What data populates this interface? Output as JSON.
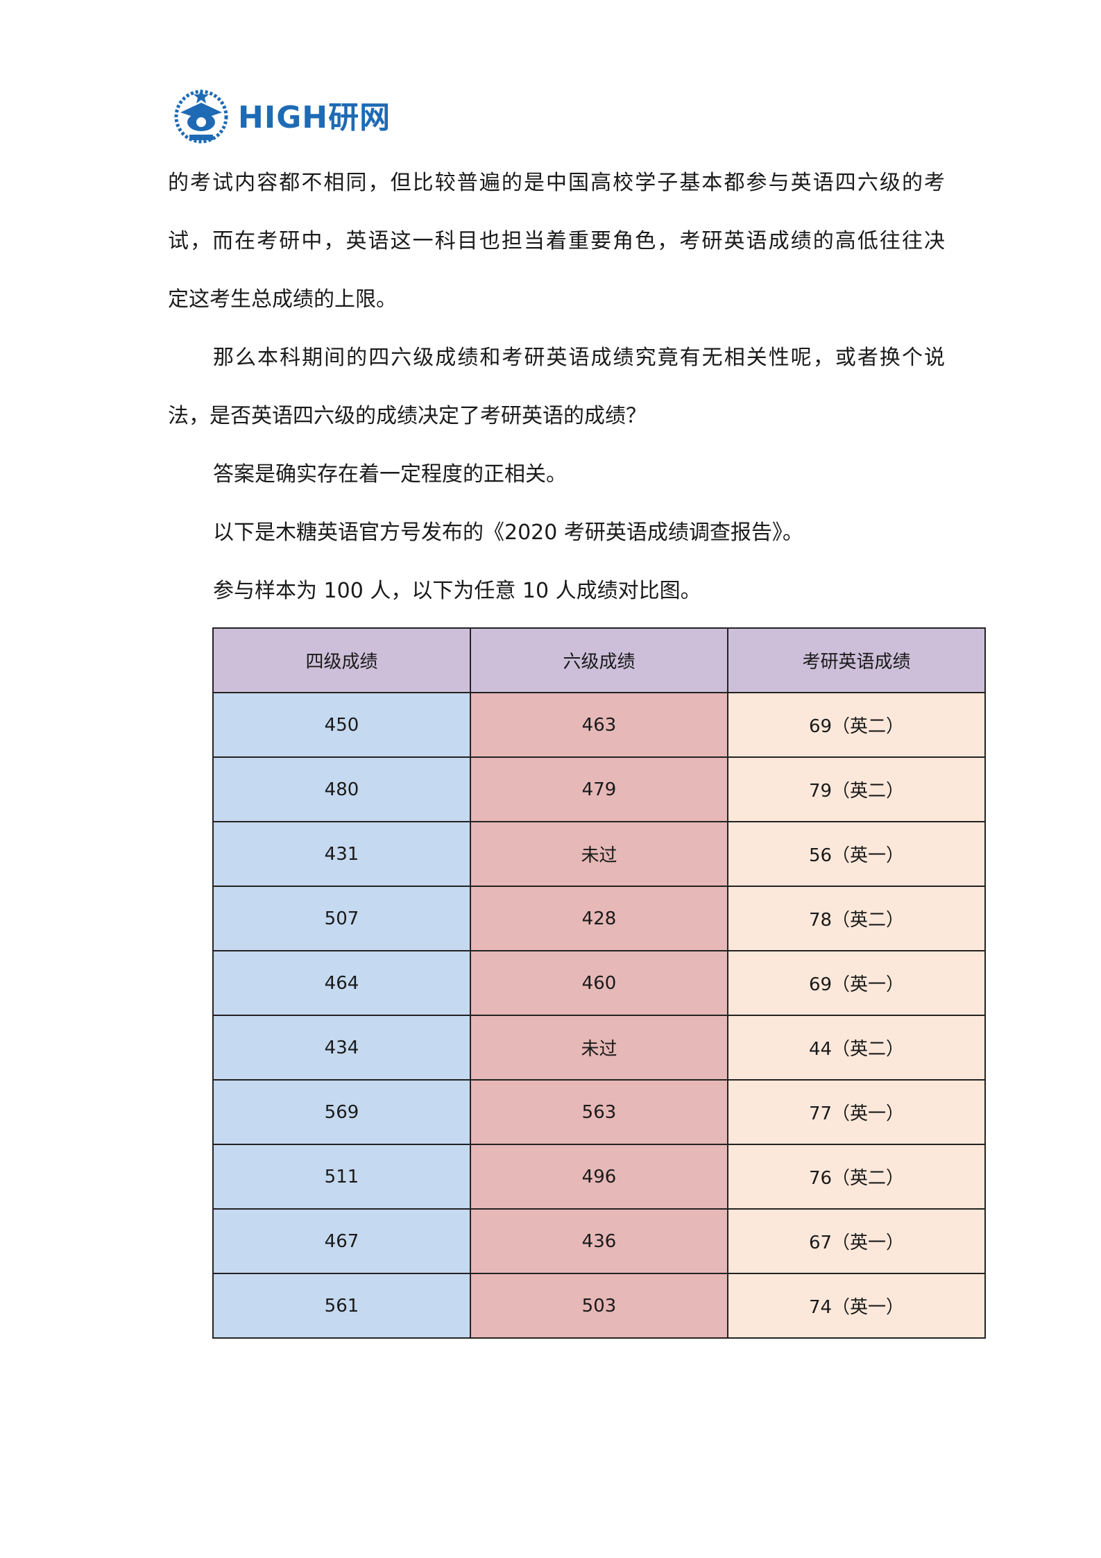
{
  "logo": {
    "text": "HIGH研网"
  },
  "paragraphs": [
    {
      "lines": [
        "的考试内容都不相同，但比较普遍的是中国高校学子基本都参与英语四六级的考",
        "试，而在考研中，英语这一科目也担当着重要角色，考研英语成绩的高低往往决",
        "定这考生总成绩的上限。"
      ]
    },
    {
      "lines": [
        "那么本科期间的四六级成绩和考研英语成绩究竟有无相关性呢，或者换个说",
        "法，是否英语四六级的成绩决定了考研英语的成绩？"
      ]
    },
    {
      "lines": [
        "答案是确实存在着一定程度的正相关。"
      ]
    },
    {
      "lines": [
        "以下是木糖英语官方号发布的《2020 考研英语成绩调查报告》。"
      ]
    },
    {
      "lines": [
        "参与样本为 100 人，以下为任意 10 人成绩对比图。"
      ]
    }
  ],
  "table": {
    "headers": [
      "四级成绩",
      "六级成绩",
      "考研英语成绩"
    ],
    "rows": [
      [
        "450",
        "463",
        "69（英二）"
      ],
      [
        "480",
        "479",
        "79（英二）"
      ],
      [
        "431",
        "未过",
        "56（英一）"
      ],
      [
        "507",
        "428",
        "78（英二）"
      ],
      [
        "464",
        "460",
        "69（英一）"
      ],
      [
        "434",
        "未过",
        "44（英二）"
      ],
      [
        "569",
        "563",
        "77（英一）"
      ],
      [
        "511",
        "496",
        "76（英二）"
      ],
      [
        "467",
        "436",
        "67（英一）"
      ],
      [
        "561",
        "503",
        "74（英一）"
      ]
    ],
    "colors": {
      "header": "#cdbfd9",
      "cet4": "#c5d9f0",
      "cet6": "#e6b8b7",
      "kaoyan": "#fce8da"
    }
  }
}
